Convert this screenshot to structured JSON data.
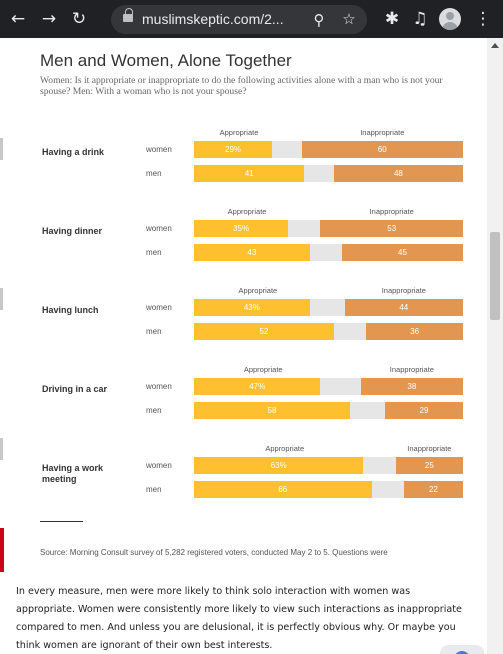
{
  "browser": {
    "url": "muslimskeptic.com/2...",
    "icons": {
      "back": "arrow-left-icon",
      "forward": "arrow-right-icon",
      "reload": "reload-icon",
      "lock": "lock-icon",
      "zoom": "zoom-icon",
      "bookmark": "star-icon",
      "extensions": "puzzle-icon",
      "media": "media-control-icon",
      "profile": "avatar-icon",
      "menu": "kebab-icon"
    }
  },
  "chart_data": {
    "type": "bar",
    "orientation": "horizontal",
    "stacked": true,
    "title": "Men and Women, Alone Together",
    "subtitle": "Women: Is it appropriate or inappropriate to do the following activities alone with a man who is not your spouse? Men: With a woman who is not your spouse?",
    "legend_left": "Appropriate",
    "legend_right": "Inappropriate",
    "xlim": [
      0,
      100
    ],
    "colors": {
      "appropriate": "#fec02f",
      "middle": "#e6e6e6",
      "inappropriate": "#e29650"
    },
    "groups": [
      {
        "activity": "Having a drink",
        "rows": [
          {
            "label": "women",
            "appropriate": 29,
            "appropriate_text": "29%",
            "inappropriate": 60,
            "inappropriate_text": "60"
          },
          {
            "label": "men",
            "appropriate": 41,
            "appropriate_text": "41",
            "inappropriate": 48,
            "inappropriate_text": "48"
          }
        ]
      },
      {
        "activity": "Having dinner",
        "rows": [
          {
            "label": "women",
            "appropriate": 35,
            "appropriate_text": "35%",
            "inappropriate": 53,
            "inappropriate_text": "53"
          },
          {
            "label": "men",
            "appropriate": 43,
            "appropriate_text": "43",
            "inappropriate": 45,
            "inappropriate_text": "45"
          }
        ]
      },
      {
        "activity": "Having lunch",
        "rows": [
          {
            "label": "women",
            "appropriate": 43,
            "appropriate_text": "43%",
            "inappropriate": 44,
            "inappropriate_text": "44"
          },
          {
            "label": "men",
            "appropriate": 52,
            "appropriate_text": "52",
            "inappropriate": 36,
            "inappropriate_text": "36"
          }
        ]
      },
      {
        "activity": "Driving in a car",
        "rows": [
          {
            "label": "women",
            "appropriate": 47,
            "appropriate_text": "47%",
            "inappropriate": 38,
            "inappropriate_text": "38"
          },
          {
            "label": "men",
            "appropriate": 58,
            "appropriate_text": "58",
            "inappropriate": 29,
            "inappropriate_text": "29"
          }
        ]
      },
      {
        "activity": "Having a work meeting",
        "rows": [
          {
            "label": "women",
            "appropriate": 63,
            "appropriate_text": "63%",
            "inappropriate": 25,
            "inappropriate_text": "25"
          },
          {
            "label": "men",
            "appropriate": 66,
            "appropriate_text": "66",
            "inappropriate": 22,
            "inappropriate_text": "22"
          }
        ]
      }
    ],
    "source": "Source: Morning Consult survey of 5,282 registered voters, conducted May 2 to 5. Questions were"
  },
  "article": {
    "paragraph": "In every measure, men were more likely to think solo interaction with women was appropriate. Women were consistently more likely to view such interactions as inappropriate compared to men. And unless you are delusional, it is perfectly obvious why. Or maybe you think women are ignorant of their own best interests."
  }
}
